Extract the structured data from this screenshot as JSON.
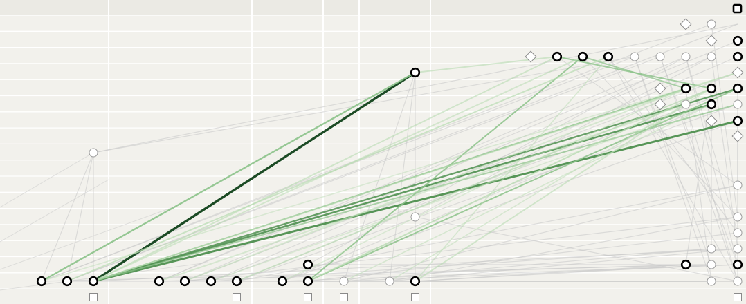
{
  "diagram": {
    "description_visible_text": "",
    "node_types": {
      "bold": {
        "fill": "#ffffff",
        "stroke": "#000000"
      },
      "light": {
        "fill": "#ffffff",
        "stroke": "#9a9a9a"
      },
      "diamond": {
        "fill": "#ffffff",
        "stroke": "#8a8a8a"
      },
      "square": {
        "fill": "#ffffff",
        "stroke": "#8a8a8a"
      },
      "square_bold": {
        "fill": "#ffffff",
        "stroke": "#000000"
      }
    },
    "edge_colors": {
      "dark": "#1c4b25",
      "mid": "#4f9150",
      "light": "#8cc38a",
      "faint": "#b9dcb3",
      "gray": "#c8c8c8"
    }
  }
}
